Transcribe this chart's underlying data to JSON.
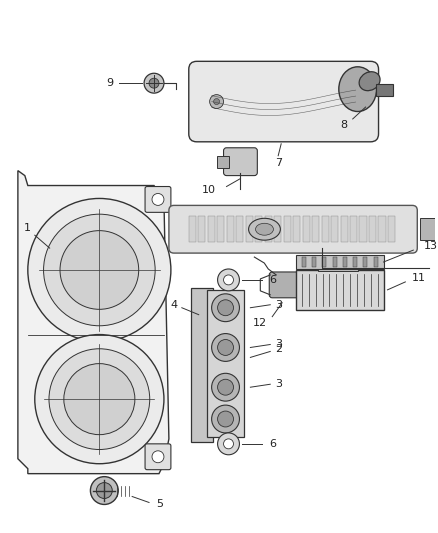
{
  "bg_color": "#ffffff",
  "fig_width": 4.38,
  "fig_height": 5.33,
  "dpi": 100,
  "lc": "#333333",
  "tc": "#222222",
  "fc": "#f5f5f5",
  "fc2": "#e0e0e0",
  "fc3": "#cccccc"
}
